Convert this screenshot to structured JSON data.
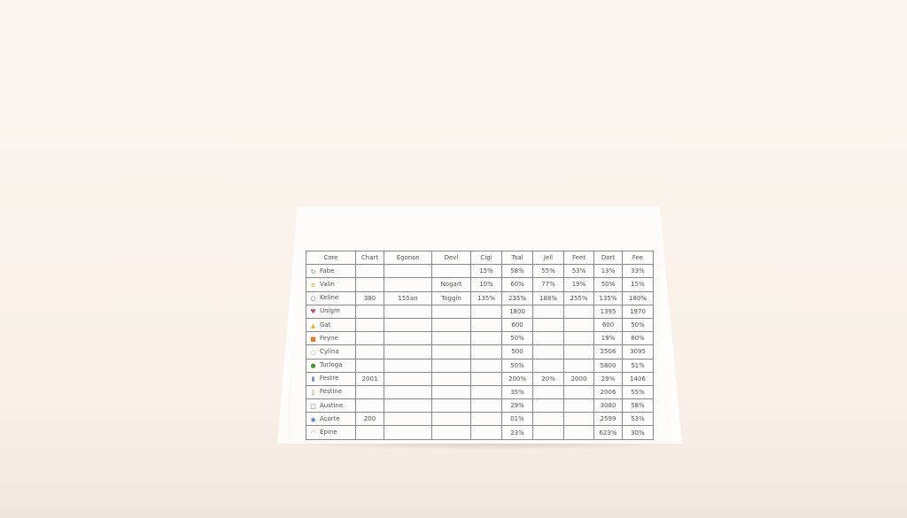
{
  "table": {
    "headers": [
      "Core",
      "Chart",
      "Egonse",
      "Devl",
      "Cigi",
      "Tsal",
      "Jell",
      "Feet",
      "Dort",
      "Fee"
    ],
    "rows": [
      {
        "icon": "refresh-icon",
        "icon_color": "#5a9a5a",
        "label": "Fabe",
        "values": [
          "",
          "",
          "",
          "15%",
          "58%",
          "55%",
          "53%",
          "13%",
          "33%"
        ]
      },
      {
        "icon": "lines-icon",
        "icon_color": "#c9a23a",
        "label": "Valin",
        "values": [
          "",
          "",
          "Nogart",
          "10%",
          "60%",
          "77%",
          "19%",
          "50%",
          "15%"
        ]
      },
      {
        "icon": "circle-icon",
        "icon_color": "#555555",
        "label": "Keline",
        "values": [
          "380",
          "155an",
          "Toggin",
          "135%",
          "235%",
          "188%",
          "255%",
          "135%",
          "180%"
        ]
      },
      {
        "icon": "heart-icon",
        "icon_color": "#b8507a",
        "label": "Unigm",
        "values": [
          "",
          "",
          "",
          "",
          "1800",
          "",
          "",
          "1395",
          "1970"
        ]
      },
      {
        "icon": "warning-icon",
        "icon_color": "#e2b830",
        "label": "Gat",
        "values": [
          "",
          "",
          "",
          "",
          "600",
          "",
          "",
          "600",
          "50%"
        ]
      },
      {
        "icon": "box-icon",
        "icon_color": "#e07a2a",
        "label": "Feyne",
        "values": [
          "",
          "",
          "",
          "",
          "50%",
          "",
          "",
          "19%",
          "80%"
        ]
      },
      {
        "icon": "clock-icon",
        "icon_color": "#5a8a6a",
        "label": "Cylina",
        "values": [
          "",
          "",
          "",
          "",
          "500",
          "",
          "",
          "2506",
          "3095"
        ]
      },
      {
        "icon": "check-icon",
        "icon_color": "#4a9a3a",
        "label": "Turloga",
        "values": [
          "",
          "",
          "",
          "",
          "50%",
          "",
          "",
          "5800",
          "51%"
        ]
      },
      {
        "icon": "document-icon",
        "icon_color": "#6a8ac0",
        "label": "Festre",
        "values": [
          "2001",
          "",
          "",
          "",
          "200%",
          "20%",
          "2000",
          "29%",
          "1406"
        ]
      },
      {
        "icon": "page-icon",
        "icon_color": "#c06a5a",
        "label": "Festine",
        "values": [
          "",
          "",
          "",
          "",
          "35%",
          "",
          "",
          "2006",
          "55%"
        ]
      },
      {
        "icon": "square-icon",
        "icon_color": "#666666",
        "label": "Austine",
        "values": [
          "",
          "",
          "",
          "",
          "29%",
          "",
          "",
          "3080",
          "58%"
        ]
      },
      {
        "icon": "eye-icon",
        "icon_color": "#4a7ac0",
        "label": "Acorte",
        "values": [
          "200",
          "",
          "",
          "",
          "01%",
          "",
          "",
          "2599",
          "53%"
        ]
      },
      {
        "icon": "lips-icon",
        "icon_color": "#d07a7a",
        "label": "Epine",
        "values": [
          "",
          "",
          "",
          "",
          "23%",
          "",
          "",
          "623%",
          "30%"
        ]
      }
    ]
  }
}
